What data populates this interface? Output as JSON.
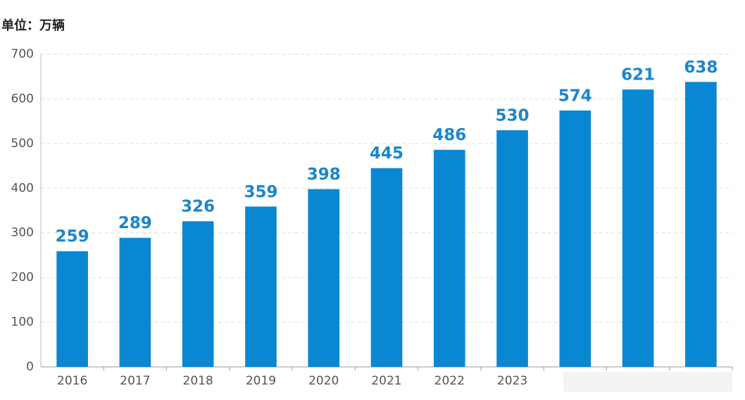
{
  "chart_data": {
    "type": "bar",
    "title": "单位：万辆",
    "categories": [
      "2016",
      "2017",
      "2018",
      "2019",
      "2020",
      "2021",
      "2022",
      "2023",
      null,
      null,
      null
    ],
    "values": [
      259,
      289,
      326,
      359,
      398,
      445,
      486,
      530,
      574,
      621,
      638
    ],
    "color": "#0a87d2",
    "ylim": [
      0,
      700
    ],
    "yticks": [
      0,
      100,
      200,
      300,
      400,
      500,
      600,
      700
    ],
    "grid": true
  }
}
